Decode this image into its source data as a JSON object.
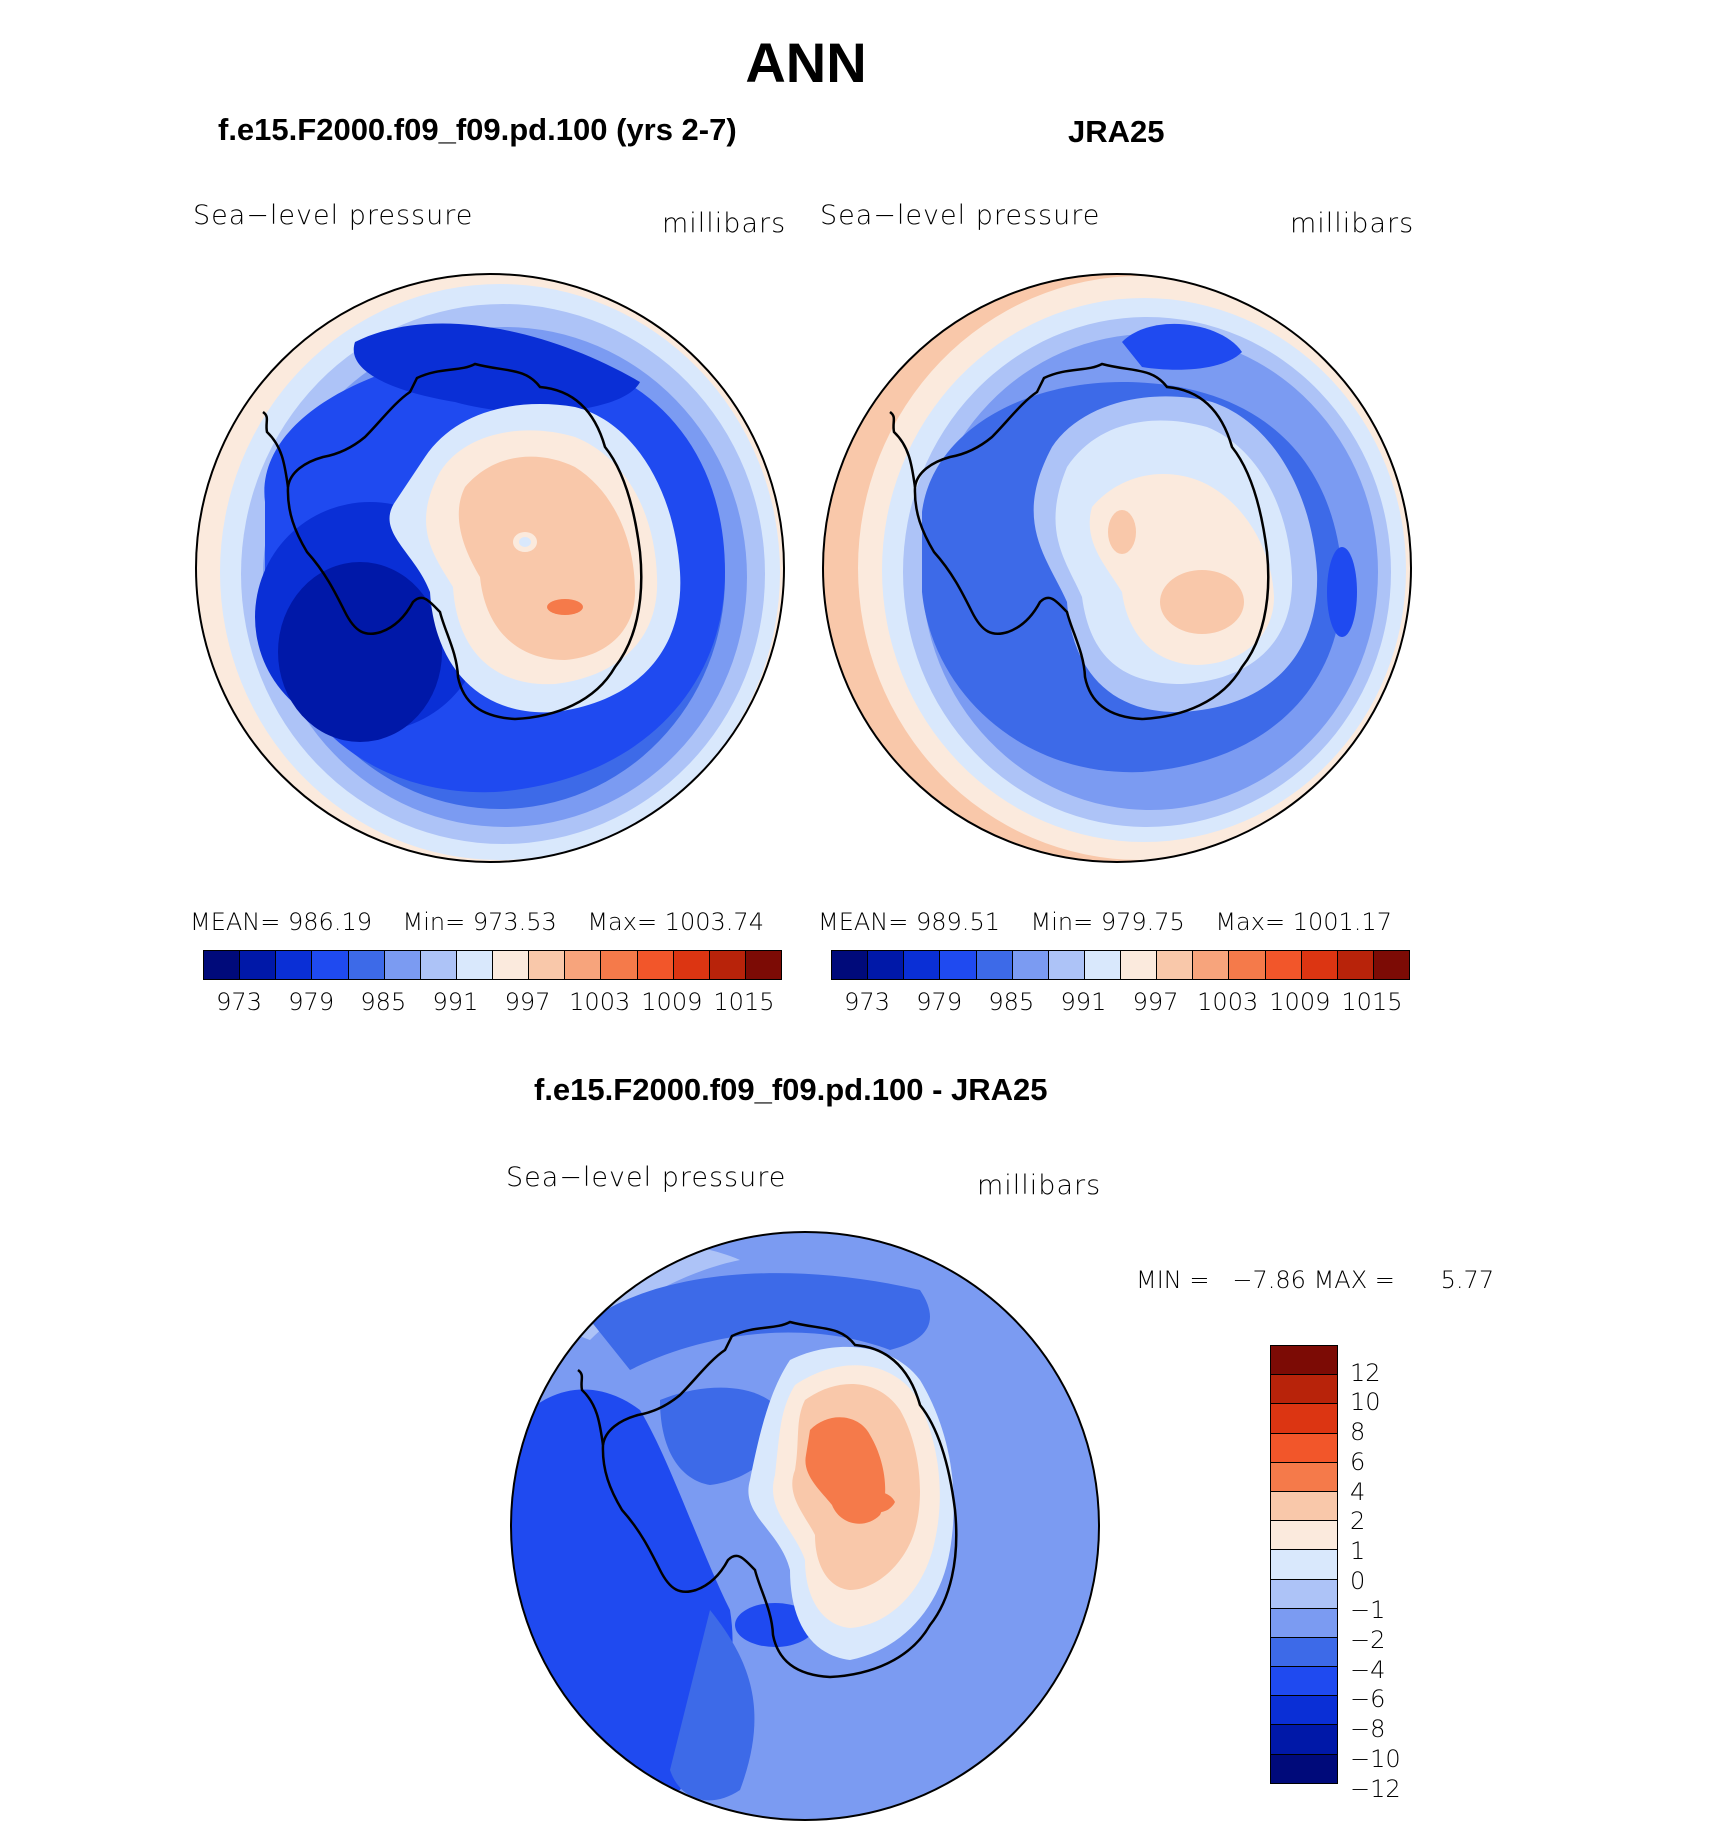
{
  "title": "ANN",
  "panels": {
    "model": {
      "title": "f.e15.F2000.f09_f09.pd.100 (yrs 2-7)",
      "variable": "Sea−level pressure",
      "units": "millibars",
      "mean_label": "MEAN=",
      "mean": "986.19",
      "min_label": "Min=",
      "min": "973.53",
      "max_label": "Max=",
      "max": "1003.74"
    },
    "obs": {
      "title": "JRA25",
      "variable": "Sea−level pressure",
      "units": "millibars",
      "mean_label": "MEAN=",
      "mean": "989.51",
      "min_label": "Min=",
      "min": "979.75",
      "max_label": "Max=",
      "max": "1001.17"
    },
    "diff": {
      "title": "f.e15.F2000.f09_f09.pd.100 - JRA25",
      "variable": "Sea−level pressure",
      "units": "millibars",
      "min_label": "MIN =",
      "min": "−7.86",
      "max_label": "MAX =",
      "max": "5.77"
    }
  },
  "colorbar_abs": {
    "colors": [
      "#000a7a",
      "#0018a8",
      "#0a2fd6",
      "#1f4af0",
      "#3d6ae8",
      "#7b9bf2",
      "#adc3f7",
      "#d9e8fc",
      "#fbeadd",
      "#f9c8aa",
      "#f7a47c",
      "#f57a4a",
      "#f2562a",
      "#dc3512",
      "#b8230a",
      "#7c0b05"
    ],
    "ticks": [
      "973",
      "979",
      "985",
      "991",
      "997",
      "1003",
      "1009",
      "1015"
    ]
  },
  "colorbar_diff": {
    "colors": [
      "#7c0b05",
      "#b8230a",
      "#dc3512",
      "#f2562a",
      "#f57a4a",
      "#f9c8aa",
      "#fbeadd",
      "#d9e8fc",
      "#adc3f7",
      "#7b9bf2",
      "#3d6ae8",
      "#1f4af0",
      "#0a2fd6",
      "#0018a8",
      "#000a7a"
    ],
    "ticks": [
      "12",
      "10",
      "8",
      "6",
      "4",
      "2",
      "1",
      "0",
      "−1",
      "−2",
      "−4",
      "−6",
      "−8",
      "−10",
      "−12"
    ]
  },
  "chart_data": [
    {
      "type": "heatmap",
      "title": "f.e15.F2000.f09_f09.pd.100 (yrs 2-7)",
      "variable": "Sea-level pressure",
      "units": "millibars",
      "projection": "south polar stereographic",
      "contour_levels": [
        973,
        976,
        979,
        982,
        985,
        988,
        991,
        994,
        997,
        1000,
        1003,
        1006,
        1009,
        1012,
        1015
      ],
      "mean": 986.19,
      "min": 973.53,
      "max": 1003.74
    },
    {
      "type": "heatmap",
      "title": "JRA25",
      "variable": "Sea-level pressure",
      "units": "millibars",
      "projection": "south polar stereographic",
      "contour_levels": [
        973,
        976,
        979,
        982,
        985,
        988,
        991,
        994,
        997,
        1000,
        1003,
        1006,
        1009,
        1012,
        1015
      ],
      "mean": 989.51,
      "min": 979.75,
      "max": 1001.17
    },
    {
      "type": "heatmap",
      "title": "f.e15.F2000.f09_f09.pd.100 - JRA25",
      "variable": "Sea-level pressure",
      "units": "millibars",
      "projection": "south polar stereographic",
      "contour_levels": [
        -12,
        -10,
        -8,
        -6,
        -4,
        -2,
        -1,
        0,
        1,
        2,
        4,
        6,
        8,
        10,
        12
      ],
      "min": -7.86,
      "max": 5.77
    }
  ]
}
